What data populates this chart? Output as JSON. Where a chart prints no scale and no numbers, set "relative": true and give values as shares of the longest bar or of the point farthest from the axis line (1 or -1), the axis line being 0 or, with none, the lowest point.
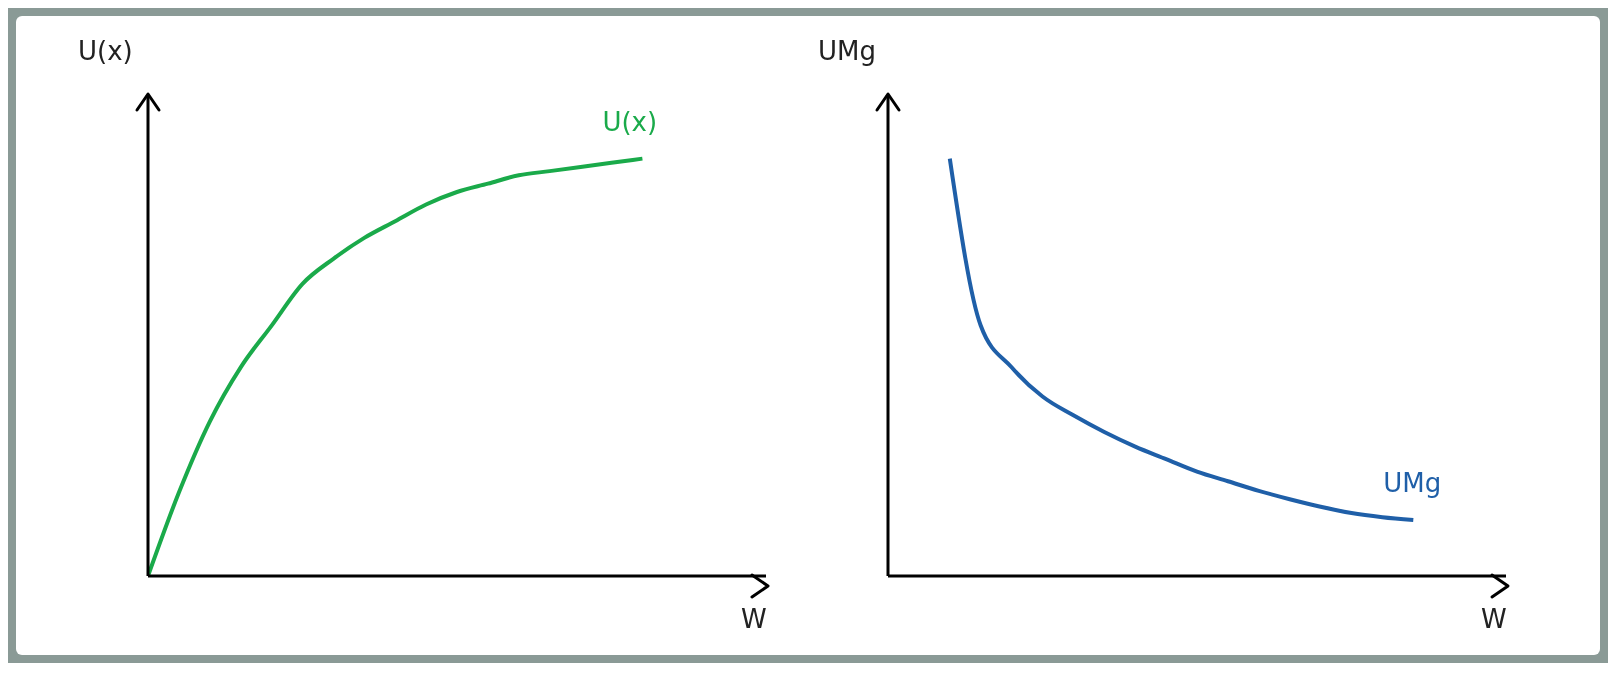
{
  "chart_data": [
    {
      "type": "line",
      "relative": true,
      "xlabel": "W",
      "ylabel": "U(x)",
      "grid": false,
      "legend": false,
      "marker": "none",
      "line_style": "solid",
      "categories": [
        null,
        null,
        null,
        null,
        null,
        null,
        null,
        null,
        null,
        null,
        null,
        null,
        null,
        null,
        null,
        null,
        null,
        null,
        null,
        null,
        null
      ],
      "series": [
        {
          "name": "U(x)",
          "color": "#1aaa4a",
          "values": [
            0,
            0.2,
            0.37,
            0.5,
            0.6,
            0.7,
            0.76,
            0.81,
            0.85,
            0.89,
            0.92,
            0.94,
            0.96,
            0.97,
            0.98,
            0.99,
            1,
            null,
            null,
            null,
            null
          ]
        }
      ]
    },
    {
      "type": "line",
      "relative": true,
      "xlabel": "W",
      "ylabel": "UMg",
      "grid": false,
      "legend": false,
      "marker": "none",
      "line_style": "solid",
      "categories": [
        null,
        null,
        null,
        null,
        null,
        null,
        null,
        null,
        null,
        null,
        null,
        null,
        null,
        null,
        null,
        null,
        null,
        null,
        null,
        null,
        null
      ],
      "series": [
        {
          "name": "UMg",
          "color": "#1f5fa8",
          "values": [
            null,
            null,
            1,
            0.6,
            0.5,
            0.43,
            0.385,
            0.345,
            0.31,
            0.28,
            0.25,
            0.227,
            0.204,
            0.184,
            0.166,
            0.151,
            0.141,
            0.134,
            null,
            null,
            null
          ]
        }
      ]
    }
  ]
}
